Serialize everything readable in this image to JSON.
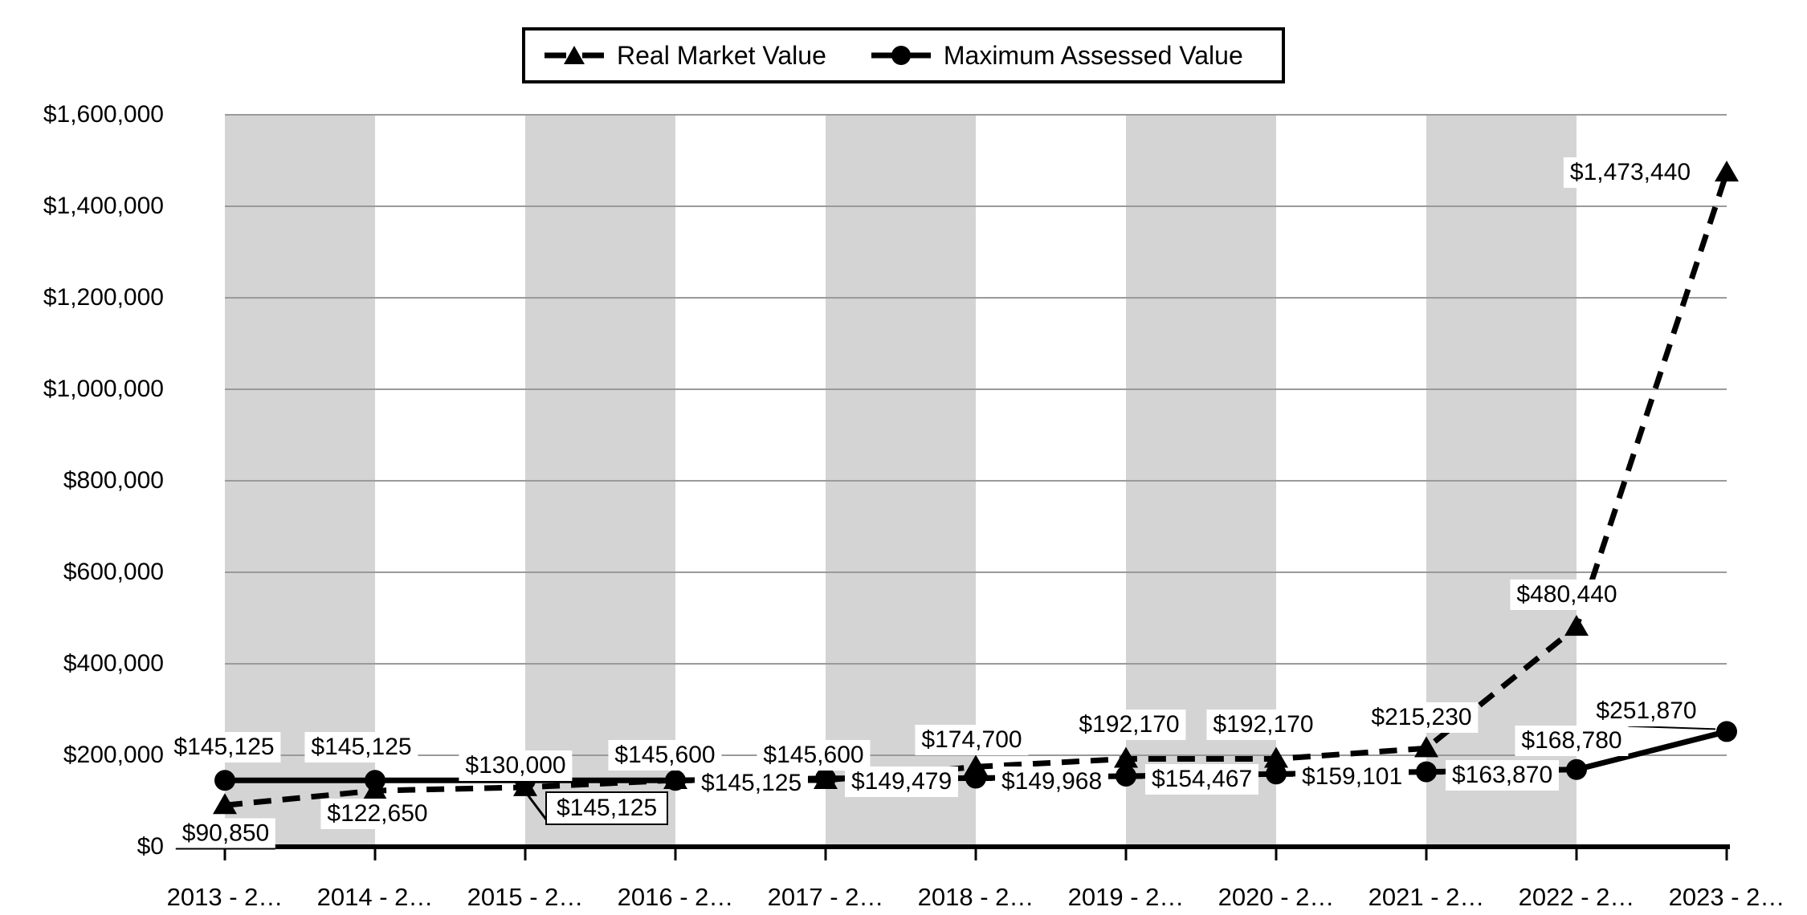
{
  "page": {
    "background": "#ffffff"
  },
  "chart_data": {
    "type": "line",
    "title": "",
    "xlabel": "",
    "ylabel": "",
    "categories": [
      "2013 - 2…",
      "2014 - 2…",
      "2015 - 2…",
      "2016 - 2…",
      "2017 - 2…",
      "2018 - 2…",
      "2019 - 2…",
      "2020 - 2…",
      "2021 - 2…",
      "2022 - 2…",
      "2023 - 2…"
    ],
    "ylim": [
      0,
      1600000
    ],
    "ytick_step": 200000,
    "ytick_labels": [
      "$0",
      "$200,000",
      "$400,000",
      "$600,000",
      "$800,000",
      "$1,000,000",
      "$1,200,000",
      "$1,400,000",
      "$1,600,000"
    ],
    "grid": "horizontal",
    "legend_position": "top",
    "plot_bands": {
      "color": "#d4d4d4",
      "pattern": "alternating-category-pairs"
    },
    "colors": {
      "series": "#000000",
      "gridline": "#9a9a9a",
      "band": "#d4d4d4",
      "axis": "#000000",
      "label_background": "#ffffff"
    },
    "series": [
      {
        "name": "Real Market Value",
        "line": "dashed",
        "marker": "triangle",
        "color": "#000000",
        "values": [
          90850,
          122650,
          130000,
          145600,
          145600,
          174700,
          192170,
          192170,
          215230,
          480440,
          1473440
        ],
        "labels": [
          {
            "text": "$90,850",
            "style": "underline",
            "dx": 1,
            "dy": 36
          },
          {
            "text": "$122,650",
            "style": "box",
            "dx": 3,
            "dy": 29
          },
          {
            "text": "$130,000",
            "style": "box",
            "dx": -12,
            "dy": -27
          },
          {
            "text": "$145,600",
            "style": "box",
            "dx": -13,
            "dy": -31
          },
          {
            "text": "$145,600",
            "style": "box",
            "dx": -15,
            "dy": -31
          },
          {
            "text": "$174,700",
            "style": "box",
            "dx": -5,
            "dy": -33
          },
          {
            "text": "$192,170",
            "style": "box",
            "dx": 4,
            "dy": -42
          },
          {
            "text": "$192,170",
            "style": "box",
            "dx": -16,
            "dy": -42
          },
          {
            "text": "$215,230",
            "style": "box",
            "dx": -6,
            "dy": -38
          },
          {
            "text": "$480,440",
            "style": "box",
            "dx": -12,
            "dy": -40
          },
          {
            "text": "$1,473,440",
            "style": "box",
            "dx": -120,
            "dy": 0
          }
        ]
      },
      {
        "name": "Maximum Assessed Value",
        "line": "solid",
        "marker": "circle",
        "color": "#000000",
        "values": [
          145125,
          145125,
          145125,
          145125,
          149479,
          149968,
          154467,
          159101,
          163870,
          168780,
          251870
        ],
        "labels": [
          {
            "text": "$145,125",
            "style": "box",
            "dx": -1,
            "dy": -41
          },
          {
            "text": "$145,125",
            "style": "box",
            "dx": -17,
            "dy": -41
          },
          {
            "text": "$145,125",
            "style": "callout",
            "dx": 25,
            "dy": 14,
            "leader": [
              3,
              18,
              27,
              50
            ]
          },
          {
            "text": "$145,125",
            "style": "right",
            "dx": 24,
            "dy": 4
          },
          {
            "text": "$149,479",
            "style": "right",
            "dx": 24,
            "dy": 4
          },
          {
            "text": "$149,968",
            "style": "right",
            "dx": 24,
            "dy": 4
          },
          {
            "text": "$154,467",
            "style": "right",
            "dx": 24,
            "dy": 4
          },
          {
            "text": "$159,101",
            "style": "right",
            "dx": 24,
            "dy": 4
          },
          {
            "text": "$163,870",
            "style": "right",
            "dx": 24,
            "dy": 4
          },
          {
            "text": "$168,780",
            "style": "box",
            "dx": -6,
            "dy": -36
          },
          {
            "text": "$251,870",
            "style": "box",
            "dx": -100,
            "dy": -25,
            "leader": [
              -158,
              -8,
              -14,
              -3
            ]
          }
        ]
      }
    ]
  }
}
